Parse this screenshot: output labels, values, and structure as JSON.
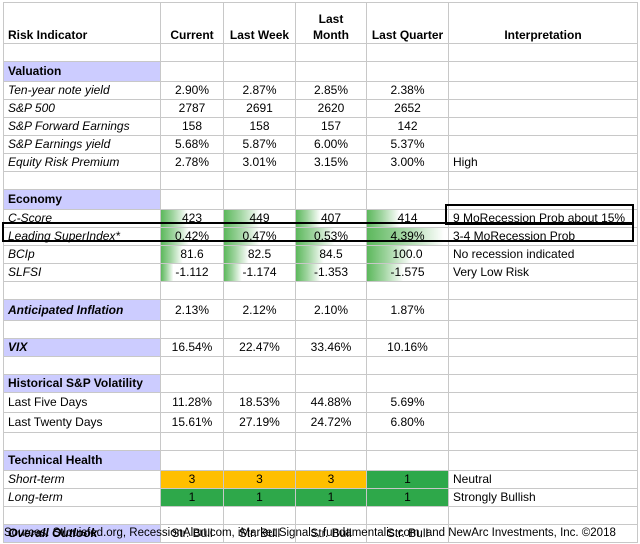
{
  "headers": {
    "indicator": "Risk Indicator",
    "current": "Current",
    "last_week": "Last Week",
    "last_month": "Last Month",
    "last_quarter": "Last Quarter",
    "interpretation": "Interpretation"
  },
  "valuation": {
    "title": "Valuation",
    "rows": [
      {
        "label": "Ten-year note yield",
        "values": [
          "2.90%",
          "2.87%",
          "2.85%",
          "2.38%"
        ],
        "interp": ""
      },
      {
        "label": "S&P 500",
        "values": [
          "2787",
          "2691",
          "2620",
          "2652"
        ],
        "interp": ""
      },
      {
        "label": "S&P Forward Earnings",
        "values": [
          "158",
          "158",
          "157",
          "142"
        ],
        "interp": ""
      },
      {
        "label": "S&P Earnings yield",
        "values": [
          "5.68%",
          "5.87%",
          "6.00%",
          "5.37%"
        ],
        "interp": ""
      },
      {
        "label": "Equity Risk Premium",
        "values": [
          "2.78%",
          "3.01%",
          "3.15%",
          "3.00%"
        ],
        "interp": "High"
      }
    ]
  },
  "economy": {
    "title": "Economy",
    "rows": [
      {
        "label": "C-Score",
        "values": [
          "423",
          "449",
          "407",
          "414"
        ],
        "interp": "9 MoRecession Prob about 15%",
        "bars": [
          0.42,
          0.5,
          0.35,
          0.4
        ]
      },
      {
        "label": "Leading SuperIndex*",
        "values": [
          "0.42%",
          "0.47%",
          "0.53%",
          "4.39%"
        ],
        "interp": "3-4 MoRecession Prob",
        "bars": [
          0.45,
          0.5,
          0.55,
          0.95
        ]
      },
      {
        "label": "BCIp",
        "values": [
          "81.6",
          "82.5",
          "84.5",
          "100.0"
        ],
        "interp": "No recession indicated",
        "bars": [
          0.35,
          0.35,
          0.4,
          0.55
        ]
      },
      {
        "label": "SLFSI",
        "values": [
          "-1.112",
          "-1.174",
          "-1.353",
          "-1.575"
        ],
        "interp": "Very Low Risk",
        "bars": [
          0.2,
          0.25,
          0.35,
          0.45
        ]
      }
    ]
  },
  "inflation": {
    "label": "Anticipated Inflation",
    "values": [
      "2.13%",
      "2.12%",
      "2.10%",
      "1.87%"
    ]
  },
  "vix": {
    "label": "VIX",
    "values": [
      "16.54%",
      "22.47%",
      "33.46%",
      "10.16%"
    ]
  },
  "volatility": {
    "title": "Historical  S&P Volatility",
    "rows": [
      {
        "label": "Last Five Days",
        "values": [
          "11.28%",
          "18.53%",
          "44.88%",
          "5.69%"
        ]
      },
      {
        "label": "Last Twenty Days",
        "values": [
          "15.61%",
          "27.19%",
          "24.72%",
          "6.80%"
        ]
      }
    ]
  },
  "technical": {
    "title": "Technical Health",
    "rows": [
      {
        "label": "Short-term",
        "values": [
          "3",
          "3",
          "3",
          "1"
        ],
        "colors": [
          "orange",
          "orange",
          "orange",
          "green"
        ],
        "interp": "Neutral"
      },
      {
        "label": "Long-term",
        "values": [
          "1",
          "1",
          "1",
          "1"
        ],
        "colors": [
          "green",
          "green",
          "green",
          "green"
        ],
        "interp": "Strongly Bullish"
      }
    ]
  },
  "outlook": {
    "label": "Overall Outlook",
    "values": [
      "Str. Bull",
      "Str. Bull",
      "Str. Bull",
      "Str. Bull"
    ]
  },
  "sources": "Sources: Stlouisfed.org, RecessionAlert.com, iMarket Signals, fundamentalis.com, and NewArc Investments, Inc. ©2018",
  "colors": {
    "section_bg": "#ccccff",
    "bar_green": "#5cb85c",
    "orange": "#ffbf00",
    "green": "#2ea84a",
    "border": "#c8c8c8"
  }
}
